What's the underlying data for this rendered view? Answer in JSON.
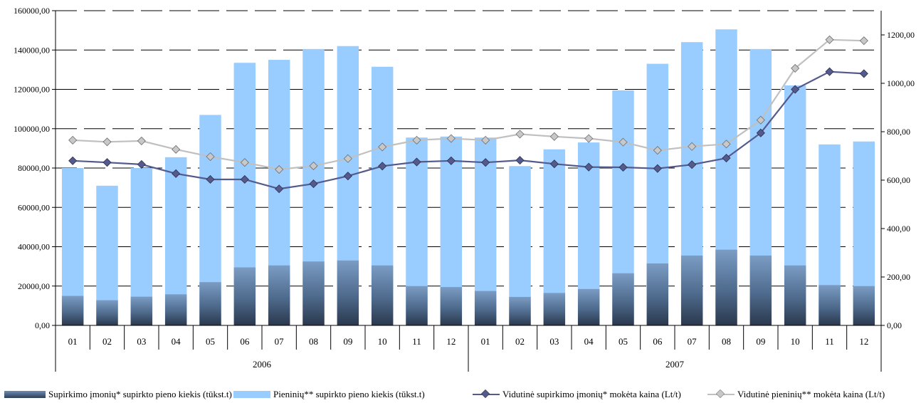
{
  "chart_data": {
    "type": "bar",
    "categories": [
      "01",
      "02",
      "03",
      "04",
      "05",
      "06",
      "07",
      "08",
      "09",
      "10",
      "11",
      "12",
      "01",
      "02",
      "03",
      "04",
      "05",
      "06",
      "07",
      "08",
      "09",
      "10",
      "11",
      "12"
    ],
    "groups": [
      {
        "label": "2006",
        "start": 0,
        "end": 11
      },
      {
        "label": "2007",
        "start": 12,
        "end": 23
      }
    ],
    "left_axis": {
      "min": 0,
      "max": 160000,
      "ticks": [
        "0,00",
        "20000,00",
        "40000,00",
        "60000,00",
        "80000,00",
        "100000,00",
        "120000,00",
        "140000,00",
        "160000,00"
      ]
    },
    "right_axis": {
      "min": 0,
      "max": 1300,
      "ticks": [
        "0,00",
        "200,00",
        "400,00",
        "600,00",
        "800,00",
        "1000,00",
        "1200,00"
      ]
    },
    "grid": "dashed horizontal",
    "legend_position": "bottom",
    "series": [
      {
        "name": "Supirkimo įmonių* supirkto pieno kiekis (tūkst.t)",
        "kind": "bar",
        "axis": "left",
        "color": "#4a6585",
        "values": [
          15000,
          12800,
          14600,
          15800,
          22000,
          29500,
          30500,
          32500,
          33000,
          30500,
          20000,
          19500,
          17500,
          14500,
          16500,
          18500,
          26500,
          31500,
          35500,
          38500,
          35500,
          30500,
          20500,
          20000
        ]
      },
      {
        "name": "Pieninių** supirkto pieno kiekis (tūkst.t)",
        "kind": "bar",
        "axis": "left",
        "color": "#99ccff",
        "values": [
          80000,
          71000,
          80000,
          85500,
          107000,
          133500,
          135000,
          140500,
          142000,
          131500,
          95500,
          96000,
          95500,
          81000,
          89500,
          93000,
          119500,
          133000,
          144000,
          150500,
          140500,
          122000,
          92000,
          93500
        ]
      },
      {
        "name": "Vidutinė supirkimo įmonių* mokėta kaina (Lt/t)",
        "kind": "line",
        "axis": "right",
        "color": "#555a8c",
        "values": [
          680,
          673,
          665,
          627,
          603,
          603,
          564,
          585,
          617,
          658,
          675,
          680,
          673,
          682,
          667,
          654,
          653,
          648,
          664,
          691,
          795,
          975,
          1048,
          1040
        ]
      },
      {
        "name": "Vidutinė pieninių** mokėta kaina (Lt/t)",
        "kind": "line",
        "axis": "right",
        "color": "#c0c0c0",
        "values": [
          765,
          758,
          762,
          727,
          697,
          673,
          644,
          659,
          689,
          737,
          765,
          772,
          765,
          790,
          780,
          772,
          757,
          723,
          739,
          749,
          848,
          1062,
          1180,
          1176
        ]
      }
    ]
  }
}
